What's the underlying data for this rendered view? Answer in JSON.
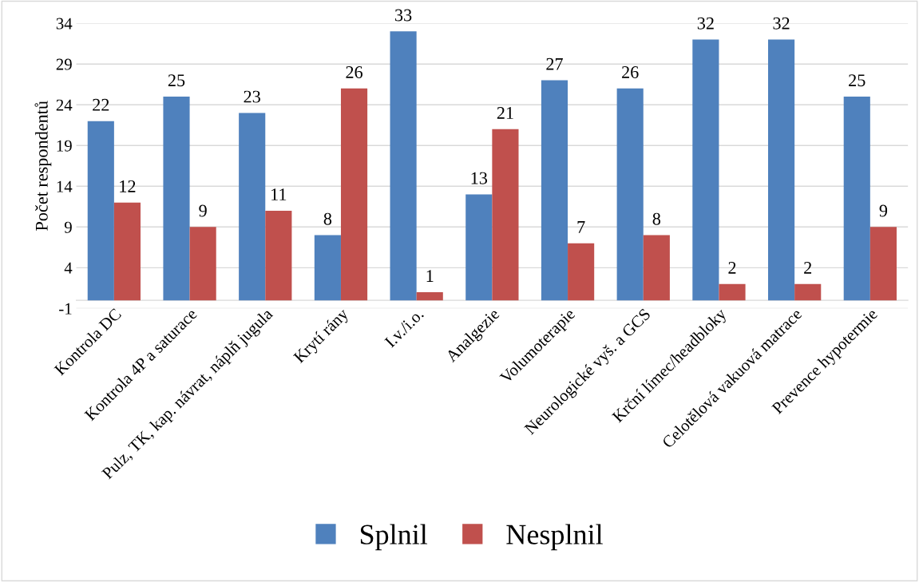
{
  "chart_data": {
    "type": "bar",
    "ylabel": "Počet respondentů",
    "categories": [
      "Kontrola DC",
      "Kontrola 4P a saturace",
      "Pulz, TK, kap. návrat, náplň jugula",
      "Krytí rány",
      "I.v./i.o.",
      "Analgezie",
      "Volumoterapie",
      "Neurologické vyš. a GCS",
      "Krční límec/headbloky",
      "Celotělová vakuová matrace",
      "Prevence hypotermie"
    ],
    "series": [
      {
        "name": "Splnil",
        "color": "#4f81bd",
        "values": [
          22,
          25,
          23,
          8,
          33,
          13,
          27,
          26,
          32,
          32,
          25
        ]
      },
      {
        "name": "Nesplnil",
        "color": "#c0504d",
        "values": [
          12,
          9,
          11,
          26,
          1,
          21,
          7,
          8,
          2,
          2,
          9
        ]
      }
    ],
    "ylim": [
      -1,
      34
    ],
    "yticks": [
      -1,
      4,
      9,
      14,
      19,
      24,
      29,
      34
    ],
    "grid": "y",
    "legend": "bottom",
    "data_labels": true
  }
}
